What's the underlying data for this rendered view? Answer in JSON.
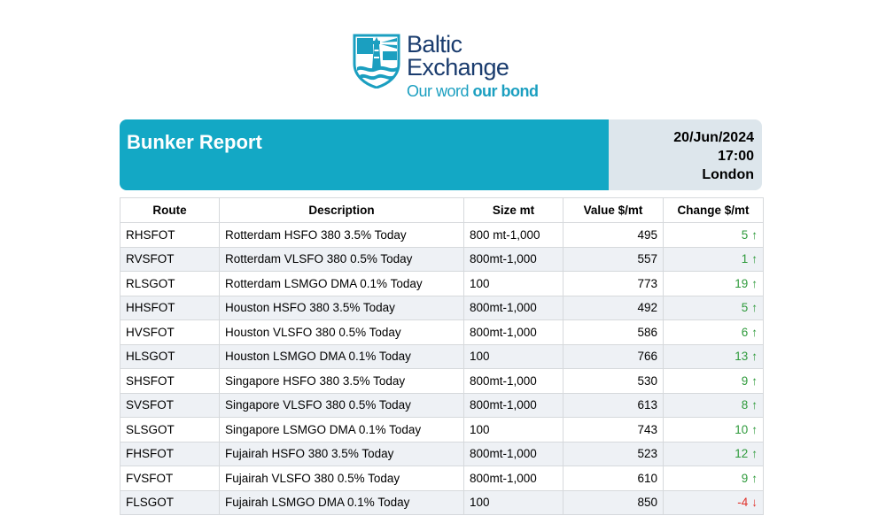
{
  "logo": {
    "line1": "Baltic",
    "line2": "Exchange",
    "tagline_regular": "Our word ",
    "tagline_bold": "our bond",
    "colors": {
      "navy": "#1a3c6e",
      "teal": "#1b9fc0"
    }
  },
  "header": {
    "title": "Bunker Report",
    "date": "20/Jun/2024",
    "time": "17:00",
    "location": "London",
    "colors": {
      "title_bg": "#13a8c5",
      "meta_bg": "#dde6ec"
    }
  },
  "table": {
    "columns": [
      "Route",
      "Description",
      "Size mt",
      "Value $/mt",
      "Change $/mt"
    ],
    "rows": [
      {
        "route": "RHSFOT",
        "description": "Rotterdam HSFO 380 3.5% Today",
        "size": "800 mt-1,000",
        "value": "495",
        "change": "5",
        "direction": "up",
        "arrow": "↑"
      },
      {
        "route": "RVSFOT",
        "description": "Rotterdam VLSFO 380 0.5% Today",
        "size": "800mt-1,000",
        "value": "557",
        "change": "1",
        "direction": "up",
        "arrow": "↑"
      },
      {
        "route": "RLSGOT",
        "description": "Rotterdam LSMGO DMA 0.1% Today",
        "size": "100",
        "value": "773",
        "change": "19",
        "direction": "up",
        "arrow": "↑"
      },
      {
        "route": "HHSFOT",
        "description": "Houston HSFO 380 3.5% Today",
        "size": "800mt-1,000",
        "value": "492",
        "change": "5",
        "direction": "up",
        "arrow": "↑"
      },
      {
        "route": "HVSFOT",
        "description": "Houston VLSFO 380 0.5% Today",
        "size": "800mt-1,000",
        "value": "586",
        "change": "6",
        "direction": "up",
        "arrow": "↑"
      },
      {
        "route": "HLSGOT",
        "description": "Houston LSMGO DMA 0.1% Today",
        "size": "100",
        "value": "766",
        "change": "13",
        "direction": "up",
        "arrow": "↑"
      },
      {
        "route": "SHSFOT",
        "description": "Singapore HSFO 380 3.5% Today",
        "size": "800mt-1,000",
        "value": "530",
        "change": "9",
        "direction": "up",
        "arrow": "↑"
      },
      {
        "route": "SVSFOT",
        "description": "Singapore VLSFO 380 0.5% Today",
        "size": "800mt-1,000",
        "value": "613",
        "change": "8",
        "direction": "up",
        "arrow": "↑"
      },
      {
        "route": "SLSGOT",
        "description": "Singapore LSMGO DMA 0.1% Today",
        "size": "100",
        "value": "743",
        "change": "10",
        "direction": "up",
        "arrow": "↑"
      },
      {
        "route": "FHSFOT",
        "description": "Fujairah HSFO 380 3.5% Today",
        "size": "800mt-1,000",
        "value": "523",
        "change": "12",
        "direction": "up",
        "arrow": "↑"
      },
      {
        "route": "FVSFOT",
        "description": "Fujairah VLSFO 380 0.5% Today",
        "size": "800mt-1,000",
        "value": "610",
        "change": "9",
        "direction": "up",
        "arrow": "↑"
      },
      {
        "route": "FLSGOT",
        "description": "Fujairah LSMGO DMA 0.1% Today",
        "size": "100",
        "value": "850",
        "change": "-4",
        "direction": "down",
        "arrow": "↓"
      }
    ],
    "colors": {
      "up": "#2e9a3b",
      "down": "#e0312a",
      "stripe": "#eef1f5"
    }
  }
}
